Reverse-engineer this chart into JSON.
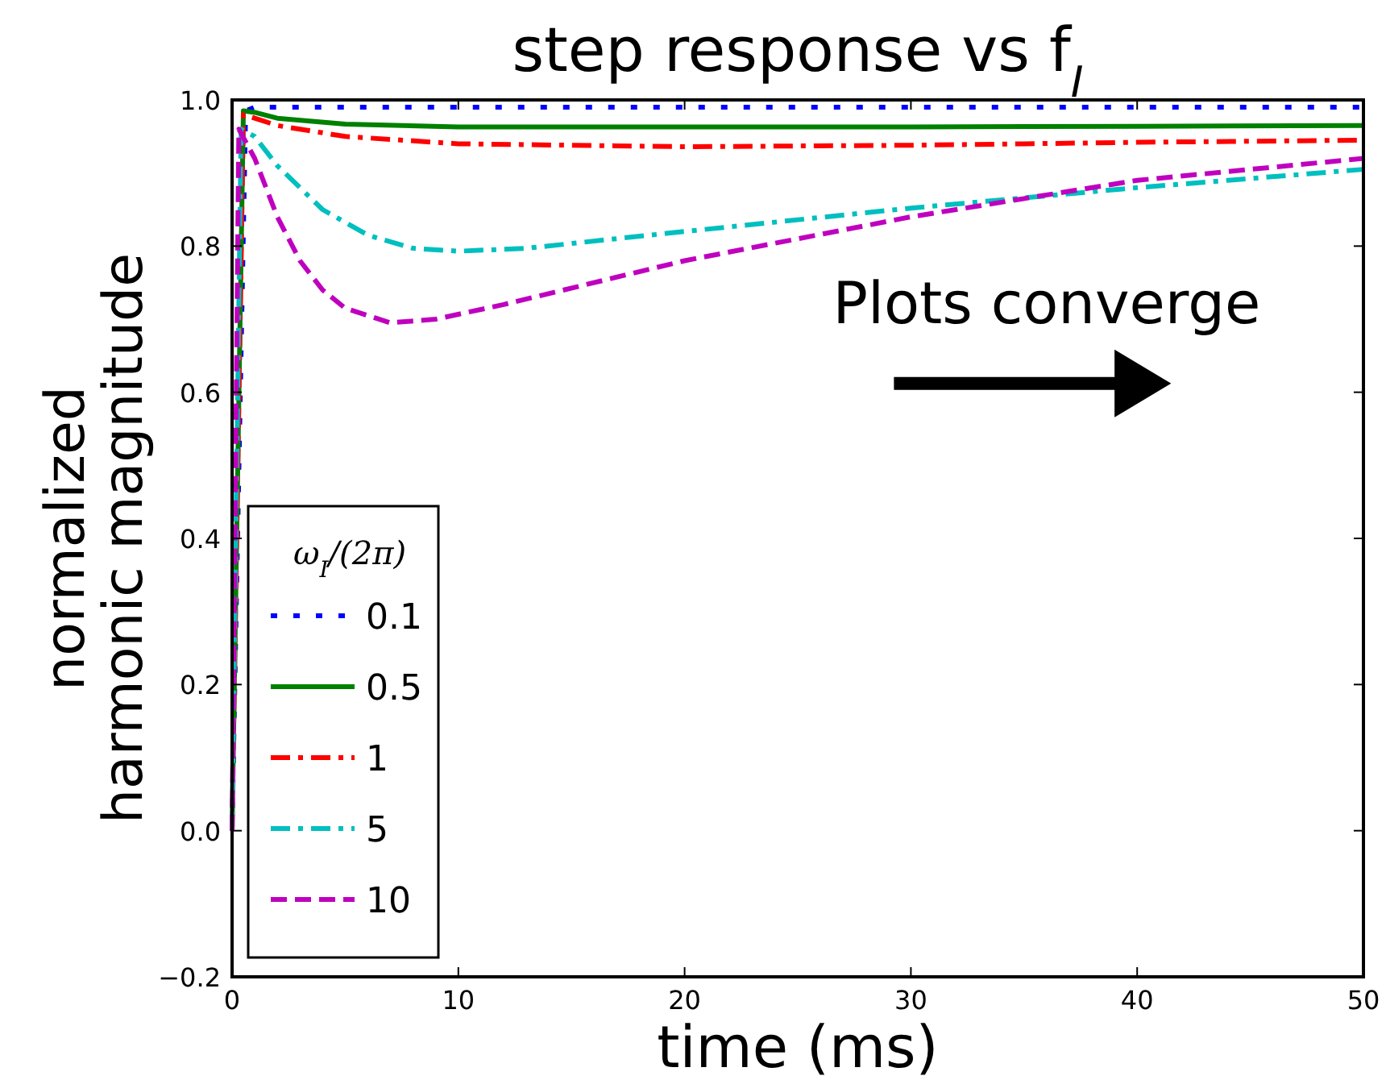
{
  "chart_data": {
    "type": "line",
    "title": "step response vs f$_{I}$",
    "xlabel": "time (ms)",
    "ylabel": "normalized\nharmonic magnitude",
    "legend_title": "ω$_{I}$/(2π)",
    "legend": "bottom left",
    "grid": false,
    "xlim": [
      0,
      50
    ],
    "xticks": [
      0,
      10,
      20,
      30,
      40,
      50
    ],
    "ylim": [
      -0.2,
      1.0
    ],
    "yticks": [
      {
        "value": -0.2,
        "label": "−0.2"
      },
      {
        "value": 0,
        "label": "0.0"
      },
      {
        "value": 0.2,
        "label": "0.2"
      },
      {
        "value": 0.4,
        "label": "0.4"
      },
      {
        "value": 0.6,
        "label": "0.6"
      },
      {
        "value": 0.8,
        "label": "0.8"
      },
      {
        "value": 1.0,
        "label": "1.0"
      }
    ],
    "annotations": [
      "Plots converge"
    ],
    "series": [
      {
        "name": "0.1",
        "color": "#0000ff",
        "line_style": "dotted",
        "x": [
          0,
          0.6,
          1,
          5,
          10,
          20,
          30,
          40,
          50
        ],
        "values": [
          0,
          0.985,
          0.99,
          0.99,
          0.99,
          0.99,
          0.99,
          0.99,
          0.99
        ]
      },
      {
        "name": "0.5",
        "color": "#008000",
        "line_style": "solid",
        "x": [
          0,
          0.5,
          1,
          2,
          5,
          10,
          20,
          30,
          40,
          50
        ],
        "values": [
          0,
          0.985,
          0.983,
          0.975,
          0.967,
          0.963,
          0.963,
          0.963,
          0.964,
          0.965
        ]
      },
      {
        "name": "1",
        "color": "#ff0000",
        "line_style": "dashdot",
        "x": [
          0,
          0.5,
          1,
          2,
          5,
          10,
          20,
          30,
          40,
          50
        ],
        "values": [
          0,
          0.98,
          0.975,
          0.965,
          0.95,
          0.94,
          0.936,
          0.938,
          0.942,
          0.945
        ]
      },
      {
        "name": "5",
        "color": "#00bfbf",
        "line_style": "dashdot",
        "x": [
          0,
          0.4,
          1,
          2,
          4,
          6,
          8,
          10,
          13,
          20,
          30,
          40,
          50
        ],
        "values": [
          0,
          0.96,
          0.95,
          0.91,
          0.85,
          0.815,
          0.797,
          0.793,
          0.797,
          0.82,
          0.852,
          0.88,
          0.905
        ]
      },
      {
        "name": "10",
        "color": "#bf00bf",
        "line_style": "dashed",
        "x": [
          0,
          0.3,
          1,
          2,
          3,
          4,
          5,
          7,
          9,
          12,
          20,
          30,
          40,
          50
        ],
        "values": [
          0,
          0.96,
          0.92,
          0.84,
          0.78,
          0.74,
          0.715,
          0.695,
          0.7,
          0.72,
          0.78,
          0.84,
          0.89,
          0.92
        ]
      }
    ]
  }
}
